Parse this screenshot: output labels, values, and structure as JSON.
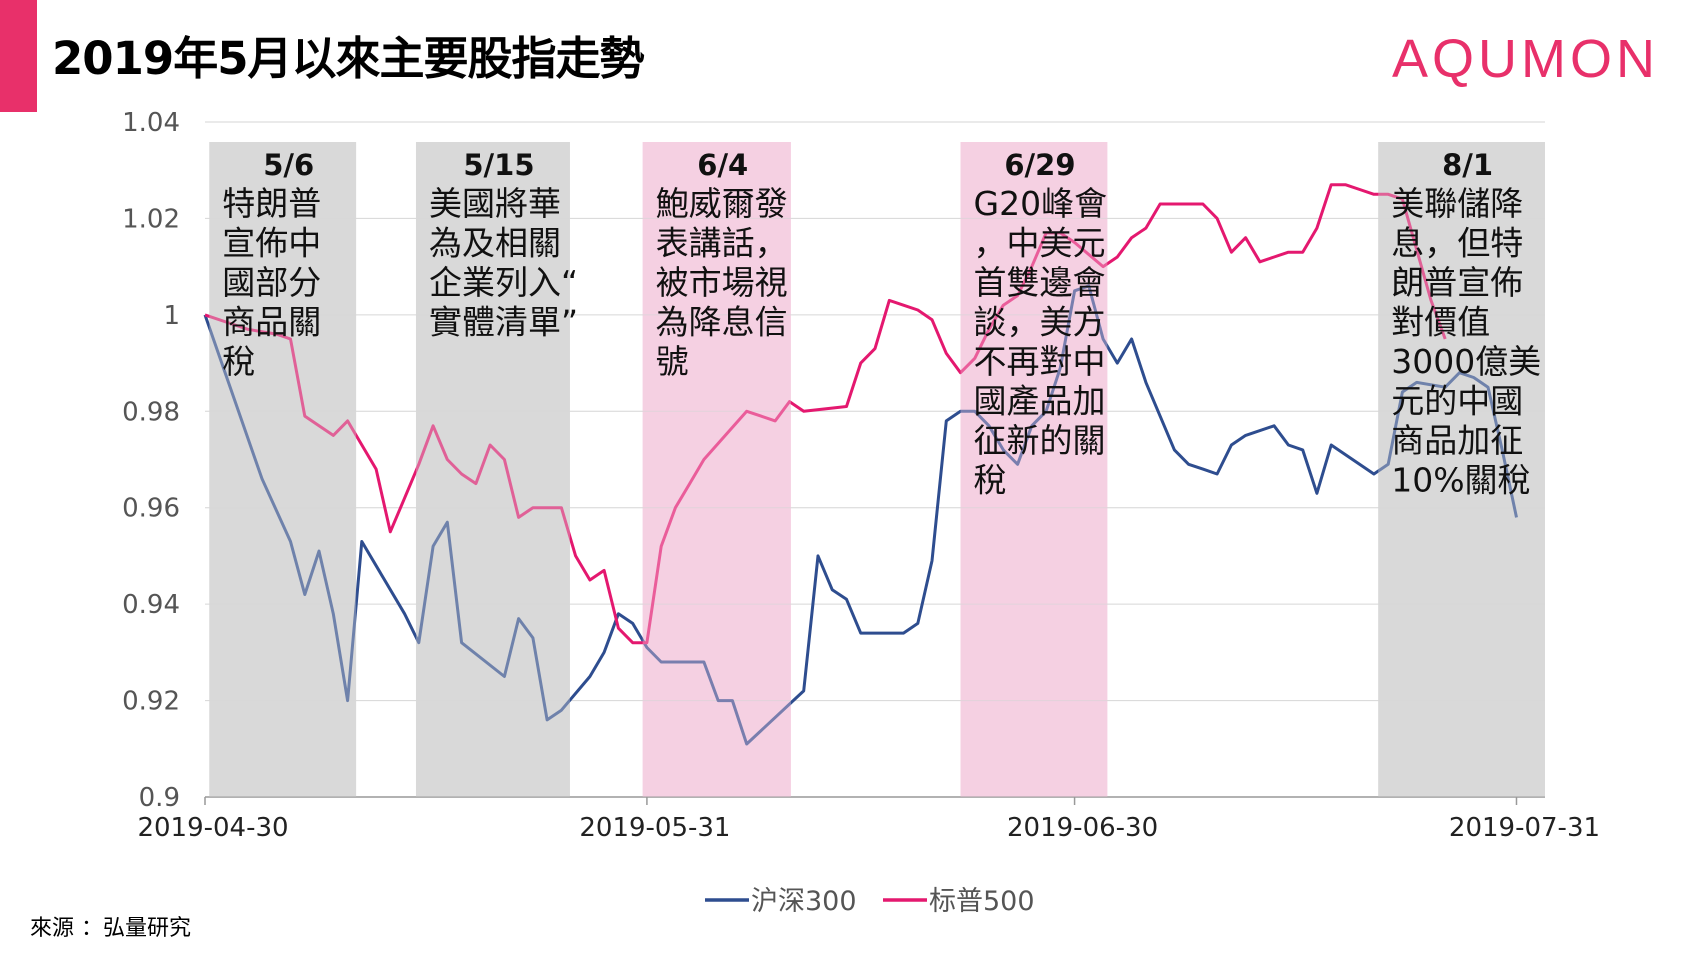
{
  "header": {
    "title": "2019年5月以來主要股指走勢",
    "logo": "AQUMON"
  },
  "footer": {
    "source": "來源 ：弘量研究"
  },
  "colors": {
    "accent": "#E8306A",
    "csi300": "#2E4D8F",
    "sp500": "#E4186F",
    "grey_band": "#D9D9D9",
    "pink_band": "#F5D0E3"
  },
  "chart_data": {
    "type": "line",
    "ylim": [
      0.9,
      1.04
    ],
    "y_ticks": [
      "1.04",
      "1.02",
      "1",
      "0.98",
      "0.96",
      "0.94",
      "0.92",
      "0.9"
    ],
    "y_tick_values": [
      1.04,
      1.02,
      1.0,
      0.98,
      0.96,
      0.94,
      0.92,
      0.9
    ],
    "x_ticks": [
      "2019-04-30",
      "2019-05-31",
      "2019-06-30",
      "2019-07-31"
    ],
    "x_tick_days": [
      0,
      31,
      61,
      92
    ],
    "x_range_days": [
      0,
      94
    ],
    "grid": true,
    "legend_position": "bottom",
    "series": [
      {
        "name": "沪深300",
        "color": "#2E4D8F",
        "points": [
          [
            0,
            1.0
          ],
          [
            4,
            0.966
          ],
          [
            6,
            0.953
          ],
          [
            7,
            0.942
          ],
          [
            8,
            0.951
          ],
          [
            9,
            0.938
          ],
          [
            10,
            0.92
          ],
          [
            11,
            0.953
          ],
          [
            14,
            0.938
          ],
          [
            15,
            0.932
          ],
          [
            16,
            0.952
          ],
          [
            17,
            0.957
          ],
          [
            18,
            0.932
          ],
          [
            21,
            0.925
          ],
          [
            22,
            0.937
          ],
          [
            23,
            0.933
          ],
          [
            24,
            0.916
          ],
          [
            25,
            0.918
          ],
          [
            27,
            0.925
          ],
          [
            28,
            0.93
          ],
          [
            29,
            0.938
          ],
          [
            30,
            0.936
          ],
          [
            31,
            0.931
          ],
          [
            32,
            0.928
          ],
          [
            35,
            0.928
          ],
          [
            36,
            0.92
          ],
          [
            37,
            0.92
          ],
          [
            38,
            0.911
          ],
          [
            42,
            0.922
          ],
          [
            43,
            0.95
          ],
          [
            44,
            0.943
          ],
          [
            45,
            0.941
          ],
          [
            46,
            0.934
          ],
          [
            49,
            0.934
          ],
          [
            50,
            0.936
          ],
          [
            51,
            0.949
          ],
          [
            52,
            0.978
          ],
          [
            53,
            0.98
          ],
          [
            54,
            0.98
          ],
          [
            55,
            0.977
          ],
          [
            56,
            0.972
          ],
          [
            57,
            0.969
          ],
          [
            58,
            0.977
          ],
          [
            59,
            0.98
          ],
          [
            60,
            0.989
          ],
          [
            61,
            1.005
          ],
          [
            62,
            1.006
          ],
          [
            63,
            0.995
          ],
          [
            64,
            0.99
          ],
          [
            65,
            0.995
          ],
          [
            66,
            0.986
          ],
          [
            67,
            0.979
          ],
          [
            68,
            0.972
          ],
          [
            69,
            0.969
          ],
          [
            70,
            0.968
          ],
          [
            71,
            0.967
          ],
          [
            72,
            0.973
          ],
          [
            73,
            0.975
          ],
          [
            75,
            0.977
          ],
          [
            76,
            0.973
          ],
          [
            77,
            0.972
          ],
          [
            78,
            0.963
          ],
          [
            79,
            0.973
          ],
          [
            82,
            0.967
          ],
          [
            83,
            0.969
          ],
          [
            84,
            0.984
          ],
          [
            85,
            0.986
          ],
          [
            87,
            0.985
          ],
          [
            88,
            0.988
          ],
          [
            89,
            0.987
          ],
          [
            90,
            0.985
          ],
          [
            91,
            0.972
          ],
          [
            92,
            0.958
          ]
        ]
      },
      {
        "name": "标普500",
        "color": "#E4186F",
        "points": [
          [
            0,
            1.0
          ],
          [
            2,
            0.998
          ],
          [
            3,
            0.997
          ],
          [
            5,
            0.996
          ],
          [
            6,
            0.995
          ],
          [
            7,
            0.979
          ],
          [
            8,
            0.977
          ],
          [
            9,
            0.975
          ],
          [
            10,
            0.978
          ],
          [
            12,
            0.968
          ],
          [
            13,
            0.955
          ],
          [
            14,
            0.962
          ],
          [
            15,
            0.969
          ],
          [
            16,
            0.977
          ],
          [
            17,
            0.97
          ],
          [
            18,
            0.967
          ],
          [
            19,
            0.965
          ],
          [
            20,
            0.973
          ],
          [
            21,
            0.97
          ],
          [
            22,
            0.958
          ],
          [
            23,
            0.96
          ],
          [
            25,
            0.96
          ],
          [
            26,
            0.95
          ],
          [
            27,
            0.945
          ],
          [
            28,
            0.947
          ],
          [
            29,
            0.935
          ],
          [
            30,
            0.932
          ],
          [
            31,
            0.932
          ],
          [
            32,
            0.952
          ],
          [
            33,
            0.96
          ],
          [
            34,
            0.965
          ],
          [
            35,
            0.97
          ],
          [
            38,
            0.98
          ],
          [
            39,
            0.979
          ],
          [
            40,
            0.978
          ],
          [
            41,
            0.982
          ],
          [
            42,
            0.98
          ],
          [
            45,
            0.981
          ],
          [
            46,
            0.99
          ],
          [
            47,
            0.993
          ],
          [
            48,
            1.003
          ],
          [
            49,
            1.002
          ],
          [
            50,
            1.001
          ],
          [
            51,
            0.999
          ],
          [
            52,
            0.992
          ],
          [
            53,
            0.988
          ],
          [
            54,
            0.991
          ],
          [
            55,
            0.997
          ],
          [
            56,
            1.002
          ],
          [
            57,
            1.004
          ],
          [
            58,
            1.01
          ],
          [
            59,
            1.017
          ],
          [
            60,
            1.017
          ],
          [
            61,
            1.015
          ],
          [
            63,
            1.01
          ],
          [
            64,
            1.012
          ],
          [
            65,
            1.016
          ],
          [
            66,
            1.018
          ],
          [
            67,
            1.023
          ],
          [
            68,
            1.023
          ],
          [
            70,
            1.023
          ],
          [
            71,
            1.02
          ],
          [
            72,
            1.013
          ],
          [
            73,
            1.016
          ],
          [
            74,
            1.011
          ],
          [
            75,
            1.012
          ],
          [
            76,
            1.013
          ],
          [
            77,
            1.013
          ],
          [
            78,
            1.018
          ],
          [
            79,
            1.027
          ],
          [
            80,
            1.027
          ],
          [
            81,
            1.026
          ],
          [
            82,
            1.025
          ],
          [
            83,
            1.025
          ],
          [
            84,
            1.024
          ],
          [
            86,
            1.003
          ],
          [
            87,
            0.995
          ]
        ]
      }
    ],
    "annotations": [
      {
        "date": "5/6",
        "text": [
          "特朗普",
          "宣佈中",
          "國部分",
          "商品關",
          "稅"
        ],
        "start_day": 0.3,
        "end_day": 10.6,
        "band": "grey"
      },
      {
        "date": "5/15",
        "text": [
          "美國將華",
          "為及相關",
          "企業列入“",
          "實體清單”"
        ],
        "start_day": 14.8,
        "end_day": 25.6,
        "band": "grey"
      },
      {
        "date": "6/4",
        "text": [
          "鮑威爾發",
          "表講話，",
          "被市場視",
          "為降息信",
          "號"
        ],
        "start_day": 30.7,
        "end_day": 41.1,
        "band": "pink"
      },
      {
        "date": "6/29",
        "text": [
          "G20峰會",
          "，中美元",
          "首雙邊會",
          "談，美方",
          "不再對中",
          "國產品加",
          "征新的關",
          "稅"
        ],
        "start_day": 53.0,
        "end_day": 63.3,
        "band": "pink"
      },
      {
        "date": "8/1",
        "text": [
          "美聯儲降",
          "息，但特",
          "朗普宣佈",
          "對價值",
          "3000億美",
          "元的中國",
          "商品加征",
          "10%關稅"
        ],
        "start_day": 82.3,
        "end_day": 94.0,
        "band": "grey"
      }
    ]
  }
}
